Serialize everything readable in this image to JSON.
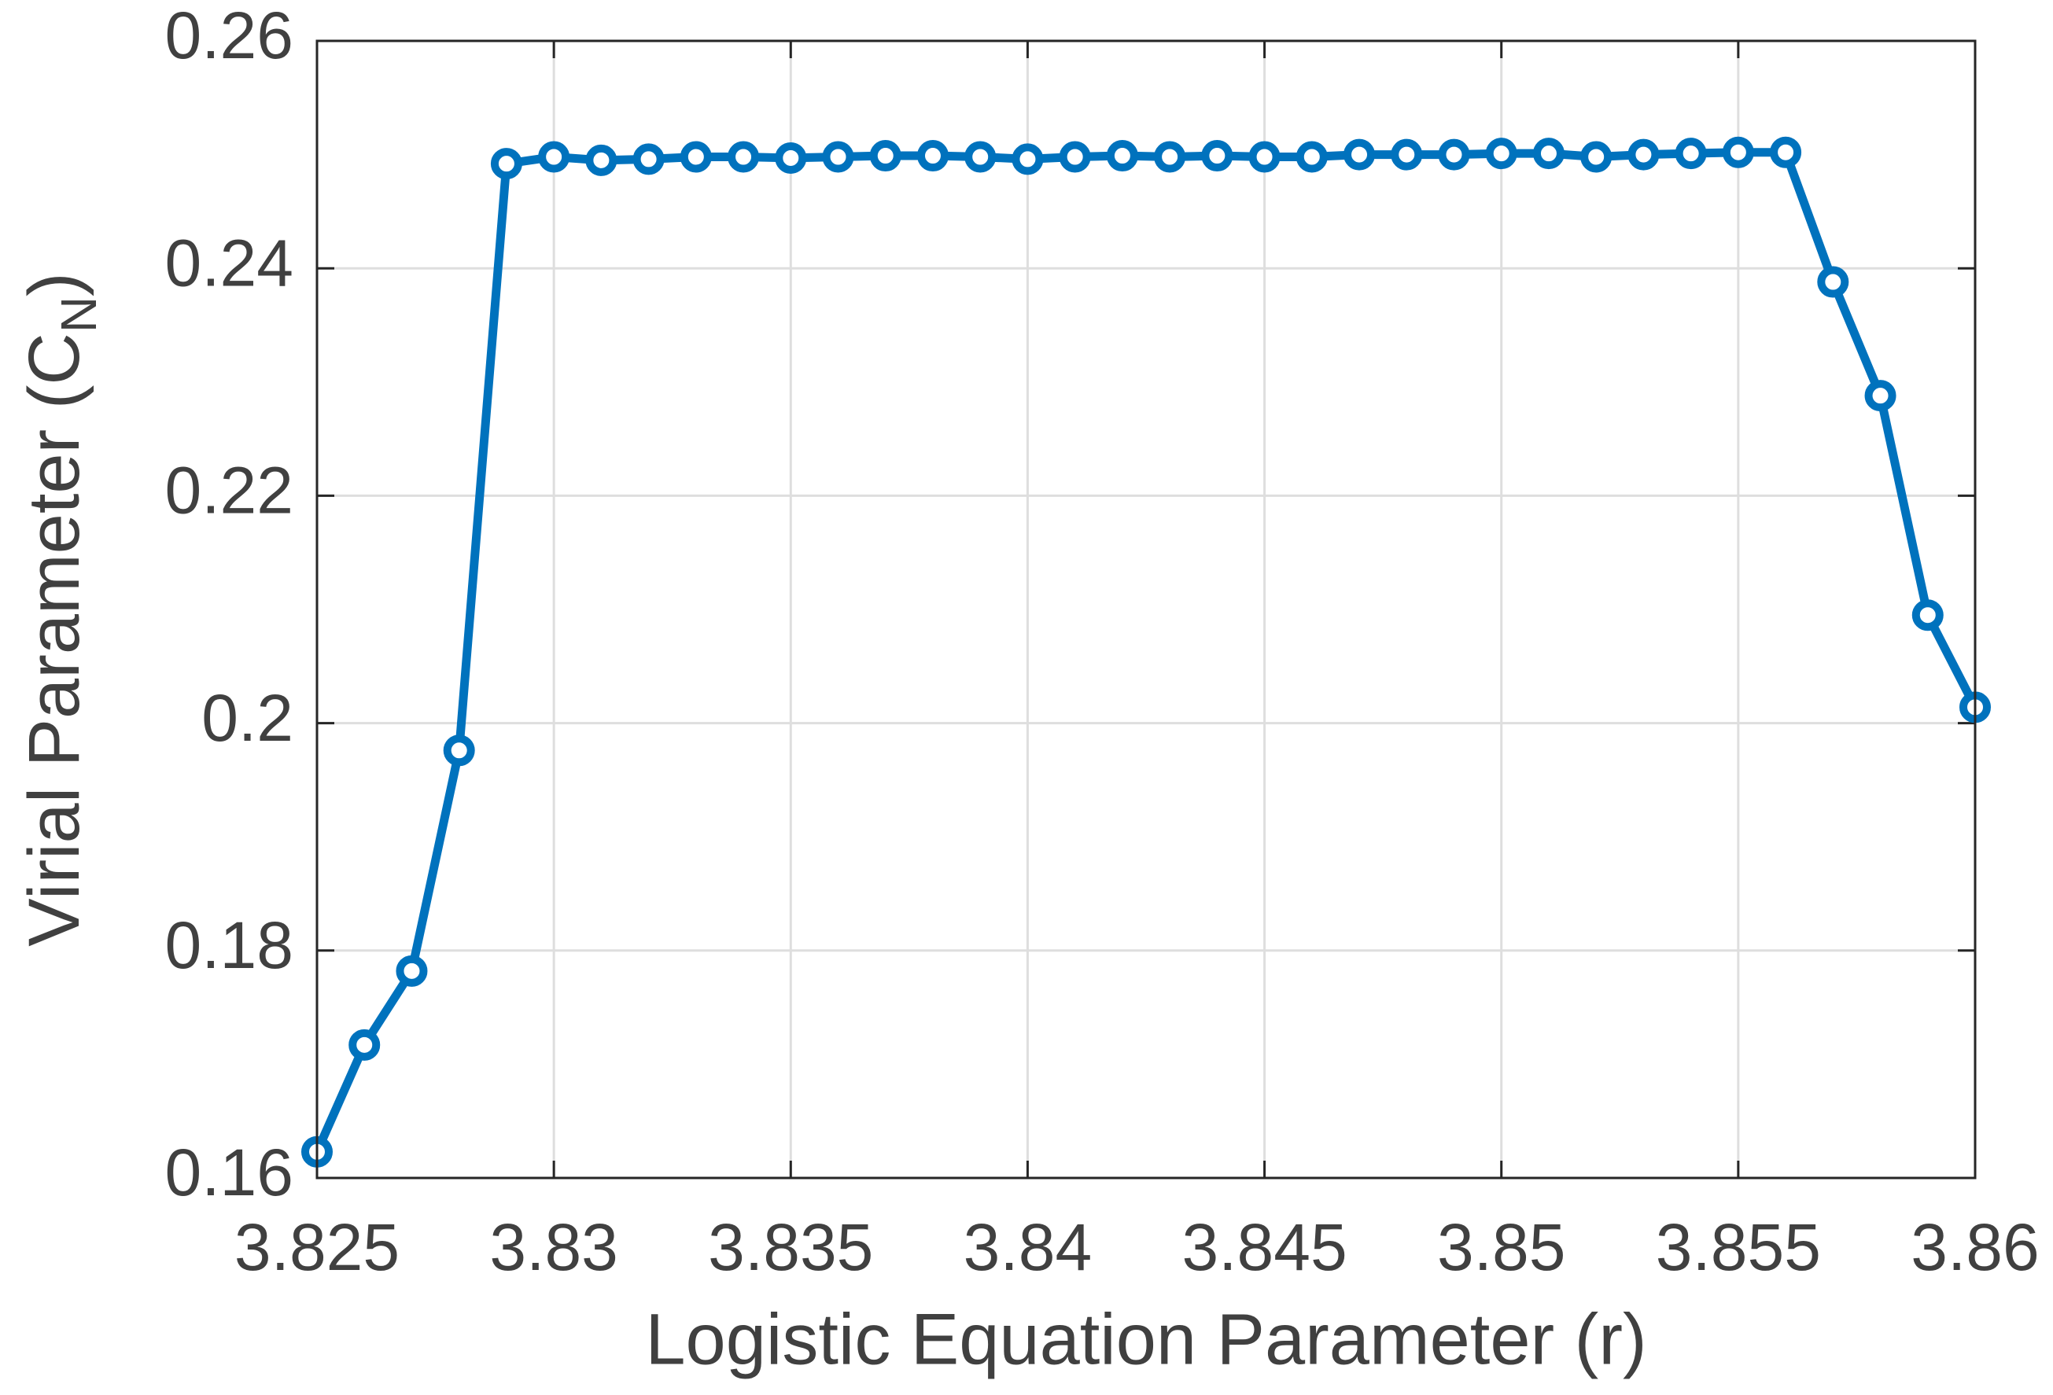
{
  "chart_data": {
    "type": "line",
    "xlabel": "Logistic Equation Parameter (r)",
    "ylabel": [
      "Virial Parameter (C",
      "N",
      ")"
    ],
    "x": [
      3.825,
      3.826,
      3.827,
      3.828,
      3.829,
      3.83,
      3.831,
      3.832,
      3.833,
      3.834,
      3.835,
      3.836,
      3.837,
      3.838,
      3.839,
      3.84,
      3.841,
      3.842,
      3.843,
      3.844,
      3.845,
      3.846,
      3.847,
      3.848,
      3.849,
      3.85,
      3.851,
      3.852,
      3.853,
      3.854,
      3.855,
      3.856,
      3.857,
      3.858,
      3.859,
      3.86
    ],
    "series": [
      {
        "color": "#0072bd",
        "values": [
          0.1623,
          0.1717,
          0.1782,
          0.1976,
          0.2492,
          0.2498,
          0.2495,
          0.2496,
          0.2498,
          0.2498,
          0.2497,
          0.2498,
          0.2499,
          0.2499,
          0.2498,
          0.2496,
          0.2498,
          0.2499,
          0.2498,
          0.2499,
          0.2498,
          0.2498,
          0.25,
          0.25,
          0.25,
          0.2501,
          0.2501,
          0.2498,
          0.25,
          0.2501,
          0.2502,
          0.2502,
          0.2388,
          0.2288,
          0.2095,
          0.2014
        ]
      }
    ],
    "xlim": [
      3.825,
      3.86
    ],
    "xticks": [
      3.825,
      3.83,
      3.835,
      3.84,
      3.845,
      3.85,
      3.855,
      3.86
    ],
    "ylim": [
      0.16,
      0.26
    ],
    "yticks": [
      0.16,
      0.18,
      0.2,
      0.22,
      0.24,
      0.26
    ],
    "grid": true
  }
}
